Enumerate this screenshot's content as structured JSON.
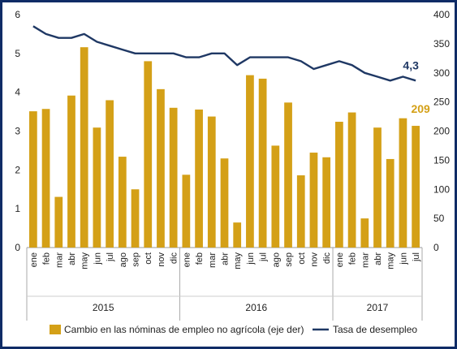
{
  "chart_data": {
    "type": "bar+line",
    "categories": [
      "ene",
      "feb",
      "mar",
      "abr",
      "may",
      "jun",
      "jul",
      "ago",
      "sep",
      "oct",
      "nov",
      "dic",
      "ene",
      "feb",
      "mar",
      "abr",
      "may",
      "jun",
      "jul",
      "ago",
      "sep",
      "oct",
      "nov",
      "dic",
      "ene",
      "feb",
      "mar",
      "abr",
      "may",
      "jun",
      "jul"
    ],
    "years": [
      {
        "label": "2015",
        "count": 12
      },
      {
        "label": "2016",
        "count": 12
      },
      {
        "label": "2017",
        "count": 7
      }
    ],
    "series": [
      {
        "name": "Cambio en las nóminas de empleo no agrícola (eje der)",
        "kind": "bar",
        "axis": "right",
        "color": "#d4a017",
        "values": [
          234,
          238,
          87,
          261,
          344,
          206,
          253,
          156,
          100,
          320,
          272,
          240,
          125,
          237,
          225,
          153,
          43,
          296,
          290,
          175,
          249,
          124,
          163,
          155,
          216,
          232,
          50,
          206,
          152,
          222,
          209
        ]
      },
      {
        "name": "Tasa de desempleo",
        "kind": "line",
        "axis": "left",
        "color": "#1f3864",
        "values": [
          5.7,
          5.5,
          5.4,
          5.4,
          5.5,
          5.3,
          5.2,
          5.1,
          5.0,
          5.0,
          5.0,
          5.0,
          4.9,
          4.9,
          5.0,
          5.0,
          4.7,
          4.9,
          4.9,
          4.9,
          4.9,
          4.8,
          4.6,
          4.7,
          4.8,
          4.7,
          4.5,
          4.4,
          4.3,
          4.4,
          4.3
        ]
      }
    ],
    "y_left": {
      "min": 0,
      "max": 6,
      "ticks": [
        "0",
        "1",
        "2",
        "3",
        "4",
        "5",
        "6"
      ]
    },
    "y_right": {
      "min": 0,
      "max": 400,
      "ticks": [
        "0",
        "50",
        "100",
        "150",
        "200",
        "250",
        "300",
        "350",
        "400"
      ]
    },
    "annotations": {
      "bar_last": {
        "text": "209",
        "color": "#d4a017"
      },
      "line_last": {
        "text": "4,3",
        "color": "#1f3864"
      }
    },
    "legend_position": "bottom"
  }
}
